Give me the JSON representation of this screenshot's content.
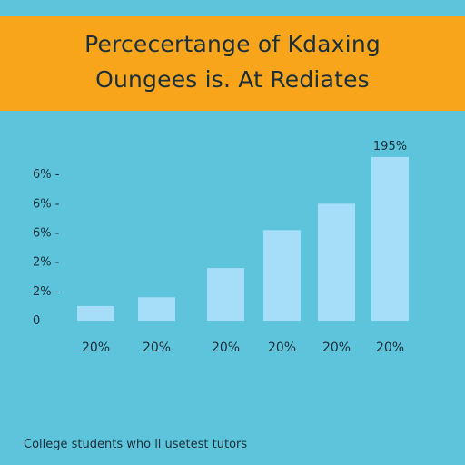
{
  "header": {
    "title_line1": "Percecertange of Kdaxing",
    "title_line2": "Oungees is. At Rediates"
  },
  "caption": "College students who ll usetest tutors",
  "colors": {
    "background": "#5ec4dc",
    "banner": "#f8a51c",
    "bar": "#a6defa",
    "text": "#1b2f3a"
  },
  "chart_data": {
    "type": "bar",
    "title": "",
    "xlabel": "",
    "ylabel": "",
    "ylim": [
      0,
      6
    ],
    "y_ticks": [
      {
        "label": "0",
        "value": 0
      },
      {
        "label": "2% -",
        "value": 1
      },
      {
        "label": "2% -",
        "value": 2
      },
      {
        "label": "6% -",
        "value": 3
      },
      {
        "label": "6% -",
        "value": 4
      },
      {
        "label": "6% -",
        "value": 5
      }
    ],
    "categories": [
      "20%",
      "20%",
      "20%",
      "20%",
      "20%",
      "20%"
    ],
    "values": [
      0.5,
      0.8,
      1.8,
      3.1,
      4.0,
      5.6
    ],
    "data_labels": [
      "",
      "",
      "",
      "",
      "",
      "195%"
    ],
    "grid": false,
    "legend": "none"
  }
}
